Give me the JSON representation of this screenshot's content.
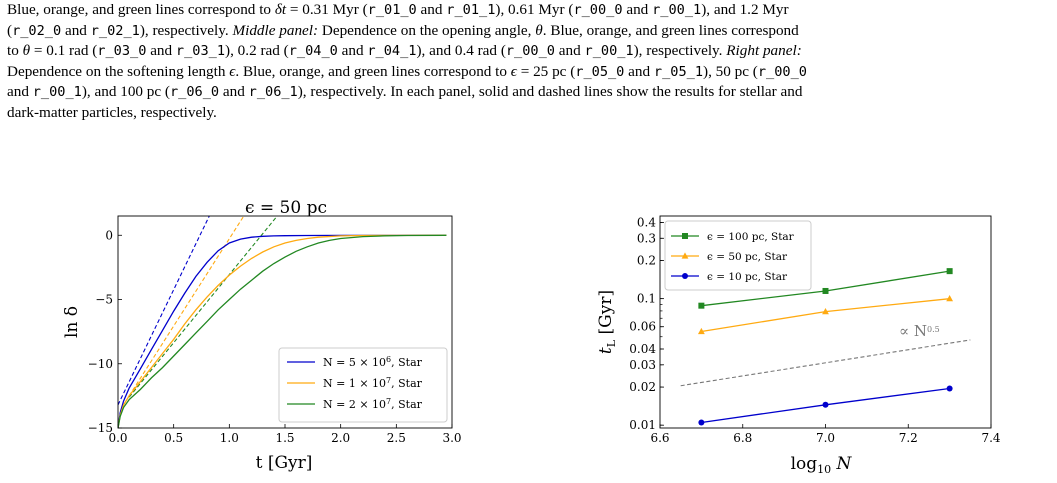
{
  "caption": {
    "line1": {
      "t1": "Blue, orange, and green lines correspond to ",
      "sym": "δt",
      "t2": " = 0.31 Myr (",
      "c1": "r_01_0",
      "t3": " and ",
      "c2": "r_01_1",
      "t4": "), 0.61 Myr (",
      "c3": "r_00_0",
      "t5": " and ",
      "c4": "r_00_1",
      "t6": "), and 1.2 Myr"
    },
    "line2": {
      "t0": "(",
      "c1": "r_02_0",
      "t1": " and ",
      "c2": "r_02_1",
      "t2": "), respectively. ",
      "i1": "Middle panel:",
      "t3": " Dependence on the opening angle, ",
      "sym": "θ",
      "t4": ". Blue, orange, and green lines correspond"
    },
    "line3": {
      "t0": "to ",
      "sym": "θ",
      "t1": " = 0.1 rad (",
      "c1": "r_03_0",
      "t2": " and ",
      "c2": "r_03_1",
      "t3": "), 0.2 rad (",
      "c3": "r_04_0",
      "t4": " and ",
      "c4": "r_04_1",
      "t5": "), and 0.4 rad (",
      "c5": "r_00_0",
      "t6": " and ",
      "c6": "r_00_1",
      "t7": "), respectively. ",
      "i1": "Right panel:"
    },
    "line4": {
      "t1": "Dependence on the softening length ",
      "sym": "ϵ",
      "t2": ". Blue, orange, and green lines correspond to ",
      "sym2": "ϵ",
      "t3": " = 25 pc (",
      "c1": "r_05_0",
      "t4": " and ",
      "c2": "r_05_1",
      "t5": "), 50 pc (",
      "c3": "r_00_0"
    },
    "line5": {
      "t1": "and ",
      "c1": "r_00_1",
      "t2": "), and 100 pc (",
      "c2": "r_06_0",
      "t3": " and ",
      "c3": "r_06_1",
      "t4": "), respectively. In each panel, solid and dashed lines show the results for stellar and"
    },
    "line6": {
      "t1": "dark-matter particles, respectively."
    }
  },
  "chart_data": [
    {
      "type": "line",
      "title": "ϵ = 50 pc",
      "xlabel": "t [Gyr]",
      "ylabel": "ln δ",
      "xlim": [
        0.0,
        3.0
      ],
      "ylim": [
        -15,
        1.5
      ],
      "xticks": [
        "0.0",
        "0.5",
        "1.0",
        "1.5",
        "2.0",
        "2.5",
        "3.0"
      ],
      "yticks": [
        "0",
        "−5",
        "−10",
        "−15"
      ],
      "legend_position": "lower-right",
      "series": [
        {
          "name": "N = 5 × 10^6, Star",
          "legend": {
            "pre": "N = 5 × 10",
            "sup": "6",
            "post": ", Star"
          },
          "color": "#0000cc",
          "x": [
            0,
            0.02,
            0.05,
            0.1,
            0.2,
            0.3,
            0.4,
            0.5,
            0.6,
            0.7,
            0.8,
            0.9,
            1.0,
            1.1,
            1.2,
            1.3,
            1.4,
            1.5,
            1.7,
            2.0,
            2.5,
            2.95
          ],
          "y": [
            -15.0,
            -13.8,
            -12.9,
            -11.9,
            -10.4,
            -8.9,
            -7.4,
            -5.9,
            -4.5,
            -3.2,
            -2.1,
            -1.2,
            -0.6,
            -0.3,
            -0.15,
            -0.08,
            -0.05,
            -0.03,
            -0.02,
            -0.01,
            -0.01,
            0.0
          ]
        },
        {
          "name": "N = 1 × 10^7, Star",
          "legend": {
            "pre": "N = 1 × 10",
            "sup": "7",
            "post": ", Star"
          },
          "color": "#ffaa11",
          "x": [
            0,
            0.02,
            0.05,
            0.1,
            0.2,
            0.3,
            0.4,
            0.5,
            0.6,
            0.7,
            0.8,
            0.9,
            1.0,
            1.1,
            1.2,
            1.3,
            1.4,
            1.5,
            1.6,
            1.7,
            1.8,
            2.0,
            2.2,
            2.5,
            2.95
          ],
          "y": [
            -15.0,
            -14.0,
            -13.2,
            -12.5,
            -11.4,
            -10.3,
            -9.2,
            -8.1,
            -6.9,
            -5.8,
            -4.8,
            -3.9,
            -3.1,
            -2.4,
            -1.8,
            -1.3,
            -0.9,
            -0.6,
            -0.4,
            -0.25,
            -0.15,
            -0.05,
            -0.02,
            -0.01,
            0.0
          ]
        },
        {
          "name": "N = 2 × 10^7, Star",
          "legend": {
            "pre": "N = 2 × 10",
            "sup": "7",
            "post": ", Star"
          },
          "color": "#228822",
          "x": [
            0,
            0.02,
            0.05,
            0.1,
            0.2,
            0.3,
            0.4,
            0.5,
            0.6,
            0.7,
            0.8,
            0.9,
            1.0,
            1.1,
            1.2,
            1.3,
            1.4,
            1.5,
            1.6,
            1.7,
            1.8,
            1.9,
            2.0,
            2.2,
            2.4,
            2.6,
            2.95
          ],
          "y": [
            -15.0,
            -14.1,
            -13.4,
            -12.8,
            -12.0,
            -11.1,
            -10.3,
            -9.4,
            -8.5,
            -7.6,
            -6.7,
            -5.8,
            -5.0,
            -4.2,
            -3.5,
            -2.8,
            -2.2,
            -1.7,
            -1.25,
            -0.9,
            -0.6,
            -0.4,
            -0.25,
            -0.1,
            -0.04,
            -0.02,
            0.0
          ]
        }
      ],
      "dashed": [
        {
          "color": "#0000cc",
          "x": [
            0,
            0.82
          ],
          "y": [
            -13.2,
            1.5
          ]
        },
        {
          "color": "#ffaa11",
          "x": [
            0.1,
            1.13
          ],
          "y": [
            -12.5,
            1.5
          ]
        },
        {
          "color": "#228822",
          "x": [
            0.1,
            1.43
          ],
          "y": [
            -12.6,
            1.5
          ]
        }
      ]
    },
    {
      "type": "line",
      "xlabel": "log10 N",
      "ylabel": "tL [Gyr]",
      "yscale": "log",
      "xlim": [
        6.6,
        7.4
      ],
      "ylim": [
        0.0095,
        0.45
      ],
      "xticks": [
        "6.6",
        "6.8",
        "7.0",
        "7.2",
        "7.4"
      ],
      "yticks": [
        {
          "v": 0.4,
          "label": "0.4"
        },
        {
          "v": 0.3,
          "label": "0.3"
        },
        {
          "v": 0.2,
          "label": "0.2"
        },
        {
          "v": 0.1,
          "label": "0.1"
        },
        {
          "v": 0.06,
          "label": "0.06"
        },
        {
          "v": 0.04,
          "label": "0.04"
        },
        {
          "v": 0.03,
          "label": "0.03"
        },
        {
          "v": 0.02,
          "label": "0.02"
        },
        {
          "v": 0.01,
          "label": "0.01"
        }
      ],
      "legend_position": "upper-left",
      "series": [
        {
          "name": "ϵ = 100 pc, Star",
          "color": "#228822",
          "marker": "square",
          "x": [
            6.7,
            7.0,
            7.3
          ],
          "y": [
            0.088,
            0.115,
            0.165
          ]
        },
        {
          "name": "ϵ = 50 pc, Star",
          "color": "#ffaa11",
          "marker": "triangle",
          "x": [
            6.7,
            7.0,
            7.3
          ],
          "y": [
            0.055,
            0.079,
            0.1
          ]
        },
        {
          "name": "ϵ = 10 pc, Star",
          "color": "#0000cc",
          "marker": "circle",
          "x": [
            6.7,
            7.0,
            7.3
          ],
          "y": [
            0.0105,
            0.0145,
            0.0195
          ]
        }
      ],
      "reference_line": {
        "color": "#777777",
        "x": [
          6.65,
          7.35
        ],
        "y": [
          0.0205,
          0.0472
        ],
        "label": {
          "pre": "∝ N",
          "sup": "0.5"
        }
      }
    }
  ]
}
